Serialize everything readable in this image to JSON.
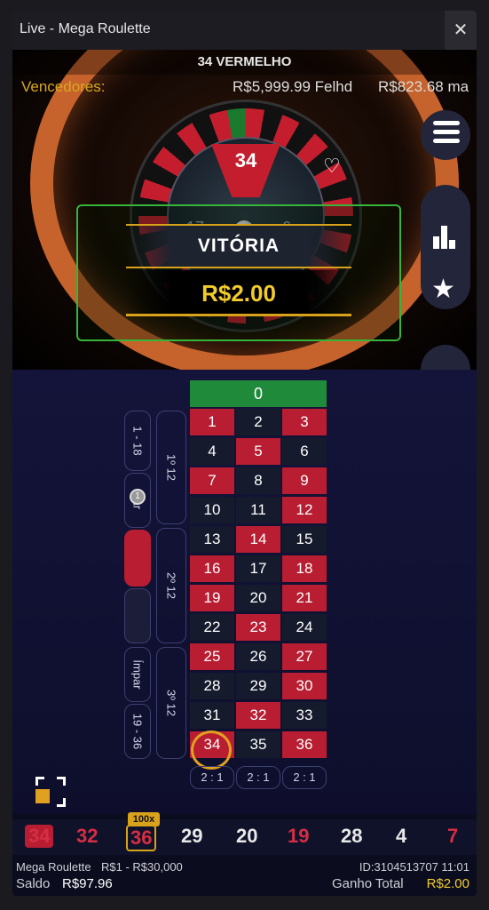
{
  "window": {
    "title": "Live - Mega Roulette",
    "close_label": "✕"
  },
  "result": {
    "text": "34 VERMELHO"
  },
  "winners": {
    "label": "Vencedores:",
    "entry1": "R$5,999.99 Felhd",
    "entry2": "R$823.68 ma"
  },
  "wheel": {
    "winning_number": "34",
    "left_number": "17",
    "right_number": "6"
  },
  "win": {
    "title": "VITÓRIA",
    "amount": "R$2.00"
  },
  "controls": {
    "chip_value": "1"
  },
  "table": {
    "zero": "0",
    "rows": [
      [
        {
          "n": "1",
          "c": "red"
        },
        {
          "n": "2",
          "c": "black"
        },
        {
          "n": "3",
          "c": "red"
        }
      ],
      [
        {
          "n": "4",
          "c": "black"
        },
        {
          "n": "5",
          "c": "red"
        },
        {
          "n": "6",
          "c": "black"
        }
      ],
      [
        {
          "n": "7",
          "c": "red"
        },
        {
          "n": "8",
          "c": "black"
        },
        {
          "n": "9",
          "c": "red"
        }
      ],
      [
        {
          "n": "10",
          "c": "black"
        },
        {
          "n": "11",
          "c": "black"
        },
        {
          "n": "12",
          "c": "red"
        }
      ],
      [
        {
          "n": "13",
          "c": "black"
        },
        {
          "n": "14",
          "c": "red"
        },
        {
          "n": "15",
          "c": "black"
        }
      ],
      [
        {
          "n": "16",
          "c": "red"
        },
        {
          "n": "17",
          "c": "black"
        },
        {
          "n": "18",
          "c": "red"
        }
      ],
      [
        {
          "n": "19",
          "c": "red"
        },
        {
          "n": "20",
          "c": "black"
        },
        {
          "n": "21",
          "c": "red"
        }
      ],
      [
        {
          "n": "22",
          "c": "black"
        },
        {
          "n": "23",
          "c": "red"
        },
        {
          "n": "24",
          "c": "black"
        }
      ],
      [
        {
          "n": "25",
          "c": "red"
        },
        {
          "n": "26",
          "c": "black"
        },
        {
          "n": "27",
          "c": "red"
        }
      ],
      [
        {
          "n": "28",
          "c": "black"
        },
        {
          "n": "29",
          "c": "black"
        },
        {
          "n": "30",
          "c": "red"
        }
      ],
      [
        {
          "n": "31",
          "c": "black"
        },
        {
          "n": "32",
          "c": "red"
        },
        {
          "n": "33",
          "c": "black"
        }
      ],
      [
        {
          "n": "34",
          "c": "red"
        },
        {
          "n": "35",
          "c": "black"
        },
        {
          "n": "36",
          "c": "red"
        }
      ]
    ],
    "columns": [
      "2 : 1",
      "2 : 1",
      "2 : 1"
    ],
    "low": "1 - 18",
    "even": "Par",
    "odd": "Ímpar",
    "high": "19 - 36",
    "dozen1": "1º 12",
    "dozen2": "2º 12",
    "dozen3": "3º 12",
    "even_chip": "1"
  },
  "history": {
    "boost_tag": "100x",
    "items": [
      {
        "n": "34",
        "c": "red"
      },
      {
        "n": "32",
        "c": "red"
      },
      {
        "n": "36",
        "c": "red"
      },
      {
        "n": "29",
        "c": "white"
      },
      {
        "n": "20",
        "c": "white"
      },
      {
        "n": "19",
        "c": "red"
      },
      {
        "n": "28",
        "c": "white"
      },
      {
        "n": "4",
        "c": "white"
      },
      {
        "n": "7",
        "c": "red"
      }
    ]
  },
  "footer": {
    "game": "Mega Roulette",
    "limits": "R$1 - R$30,000",
    "id_time": "ID:3104513707  11:01",
    "saldo_label": "Saldo",
    "saldo": "R$97.96",
    "ganho_label": "Ganho Total",
    "ganho": "R$2.00"
  },
  "colors": {
    "red": "#b81d31",
    "black": "#151a2c",
    "green": "#1f8a3a",
    "gold": "#d9a21b"
  }
}
